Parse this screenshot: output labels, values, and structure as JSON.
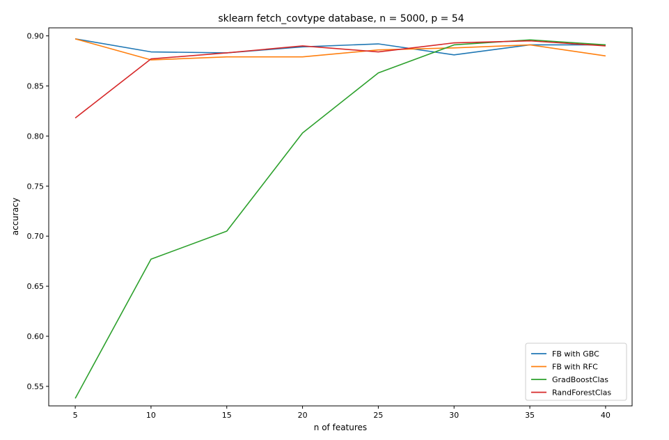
{
  "chart_data": {
    "type": "line",
    "title": "sklearn fetch_covtype database, n = 5000, p = 54",
    "xlabel": "n of features",
    "ylabel": "accuracy",
    "x": [
      5,
      10,
      15,
      20,
      25,
      30,
      35,
      40
    ],
    "xticks": [
      "5",
      "10",
      "15",
      "20",
      "25",
      "30",
      "35",
      "40"
    ],
    "yticks": [
      "0.55",
      "0.60",
      "0.65",
      "0.70",
      "0.75",
      "0.80",
      "0.85",
      "0.90"
    ],
    "xlim": [
      3.25,
      41.75
    ],
    "ylim": [
      0.5305,
      0.908
    ],
    "grid": false,
    "legend_position": "lower-right",
    "series": [
      {
        "name": "FB with GBC",
        "color": "#1f77b4",
        "values": [
          0.897,
          0.884,
          0.883,
          0.889,
          0.892,
          0.881,
          0.891,
          0.891
        ]
      },
      {
        "name": "FB with RFC",
        "color": "#ff7f0e",
        "values": [
          0.897,
          0.876,
          0.879,
          0.879,
          0.886,
          0.888,
          0.891,
          0.88
        ]
      },
      {
        "name": "GradBoostClas",
        "color": "#2ca02c",
        "values": [
          0.538,
          0.677,
          0.705,
          0.803,
          0.863,
          0.891,
          0.896,
          0.891
        ]
      },
      {
        "name": "RandForestClas",
        "color": "#d62728",
        "values": [
          0.818,
          0.877,
          0.883,
          0.89,
          0.884,
          0.893,
          0.895,
          0.89
        ]
      }
    ]
  }
}
